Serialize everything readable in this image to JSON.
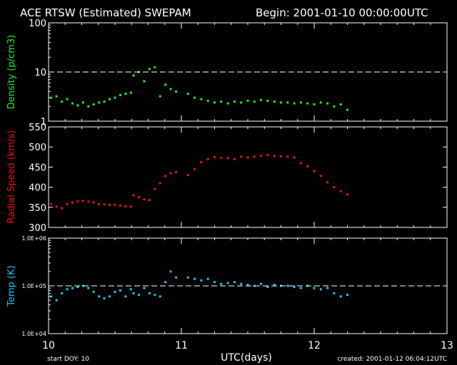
{
  "header": {
    "title": "ACE RTSW (Estimated) SWEPAM",
    "begin": "Begin: 2001-01-10 00:00:00UTC"
  },
  "footer": {
    "start_doy": "start DOY:  10",
    "xlabel": "UTC(days)",
    "created": "created: 2001-01-12 06:04:12UTC"
  },
  "colors": {
    "density": "#22ee22",
    "speed": "#ee1111",
    "temp": "#11c8f0",
    "axes": "#ffffff",
    "background": "#000000"
  },
  "chart_data": [
    {
      "type": "scatter",
      "ylabel": "Density (p/cm3)",
      "yscale": "log",
      "ylim": [
        1,
        100
      ],
      "yticks": [
        "1",
        "10",
        "100"
      ],
      "reference_line": 10,
      "xlim": [
        10,
        13
      ],
      "xticks": [
        "10",
        "11",
        "12",
        "13"
      ],
      "x": [
        10.02,
        10.06,
        10.1,
        10.14,
        10.18,
        10.22,
        10.26,
        10.3,
        10.34,
        10.38,
        10.42,
        10.46,
        10.5,
        10.54,
        10.58,
        10.62,
        10.64,
        10.68,
        10.72,
        10.76,
        10.8,
        10.84,
        10.88,
        10.92,
        10.96,
        11.05,
        11.1,
        11.15,
        11.2,
        11.25,
        11.3,
        11.35,
        11.4,
        11.45,
        11.5,
        11.55,
        11.6,
        11.65,
        11.7,
        11.75,
        11.8,
        11.85,
        11.9,
        11.95,
        12.0,
        12.05,
        12.1,
        12.15,
        12.2,
        12.25
      ],
      "values": [
        3.0,
        3.2,
        2.5,
        2.8,
        2.3,
        2.1,
        2.4,
        2.0,
        2.2,
        2.4,
        2.5,
        2.8,
        3.0,
        3.4,
        3.6,
        3.8,
        8.5,
        10.0,
        6.5,
        11.5,
        12.5,
        3.2,
        5.5,
        4.5,
        4.0,
        3.6,
        3.0,
        2.8,
        2.6,
        2.4,
        2.5,
        2.3,
        2.5,
        2.4,
        2.6,
        2.5,
        2.7,
        2.6,
        2.5,
        2.4,
        2.4,
        2.3,
        2.4,
        2.3,
        2.2,
        2.4,
        2.3,
        2.0,
        2.2,
        1.7
      ]
    },
    {
      "type": "scatter",
      "ylabel": "Radial Speed (km/s)",
      "ylim": [
        300,
        550
      ],
      "yticks": [
        "300",
        "350",
        "400",
        "450",
        "500",
        "550"
      ],
      "xlim": [
        10,
        13
      ],
      "xticks": [
        "10",
        "11",
        "12",
        "13"
      ],
      "x": [
        10.02,
        10.06,
        10.1,
        10.14,
        10.18,
        10.22,
        10.26,
        10.3,
        10.34,
        10.38,
        10.42,
        10.46,
        10.5,
        10.54,
        10.58,
        10.62,
        10.64,
        10.68,
        10.72,
        10.76,
        10.8,
        10.84,
        10.88,
        10.92,
        10.96,
        11.05,
        11.1,
        11.15,
        11.2,
        11.25,
        11.3,
        11.35,
        11.4,
        11.45,
        11.5,
        11.55,
        11.6,
        11.65,
        11.7,
        11.75,
        11.8,
        11.85,
        11.9,
        11.95,
        12.0,
        12.05,
        12.1,
        12.15,
        12.2,
        12.25
      ],
      "values": [
        358,
        352,
        348,
        358,
        362,
        365,
        366,
        364,
        362,
        358,
        357,
        356,
        356,
        354,
        352,
        352,
        380,
        375,
        370,
        368,
        395,
        410,
        428,
        435,
        438,
        430,
        445,
        462,
        470,
        475,
        473,
        472,
        470,
        476,
        474,
        476,
        478,
        480,
        478,
        477,
        476,
        474,
        460,
        452,
        440,
        428,
        412,
        400,
        390,
        382
      ]
    },
    {
      "type": "scatter",
      "ylabel": "Temp (K)",
      "yscale": "log",
      "ylim": [
        10000,
        1000000
      ],
      "yticks": [
        "1.0E+04",
        "1.0E+05",
        "1.0E+06"
      ],
      "reference_line": 100000,
      "xlim": [
        10,
        13
      ],
      "xticks": [
        "10",
        "11",
        "12",
        "13"
      ],
      "x": [
        10.02,
        10.06,
        10.1,
        10.14,
        10.18,
        10.22,
        10.26,
        10.3,
        10.34,
        10.38,
        10.42,
        10.46,
        10.5,
        10.54,
        10.58,
        10.62,
        10.64,
        10.68,
        10.72,
        10.76,
        10.8,
        10.84,
        10.88,
        10.92,
        10.96,
        11.05,
        11.1,
        11.15,
        11.2,
        11.25,
        11.3,
        11.35,
        11.4,
        11.45,
        11.5,
        11.55,
        11.6,
        11.65,
        11.7,
        11.75,
        11.8,
        11.85,
        11.9,
        11.95,
        12.0,
        12.05,
        12.1,
        12.15,
        12.2,
        12.25
      ],
      "values": [
        60000,
        50000,
        70000,
        85000,
        90000,
        95000,
        100000,
        90000,
        75000,
        60000,
        55000,
        60000,
        75000,
        80000,
        60000,
        85000,
        70000,
        65000,
        90000,
        70000,
        65000,
        60000,
        120000,
        200000,
        150000,
        150000,
        140000,
        130000,
        140000,
        120000,
        110000,
        115000,
        120000,
        110000,
        105000,
        100000,
        110000,
        95000,
        105000,
        100000,
        100000,
        95000,
        90000,
        100000,
        90000,
        85000,
        90000,
        70000,
        60000,
        65000
      ]
    }
  ]
}
